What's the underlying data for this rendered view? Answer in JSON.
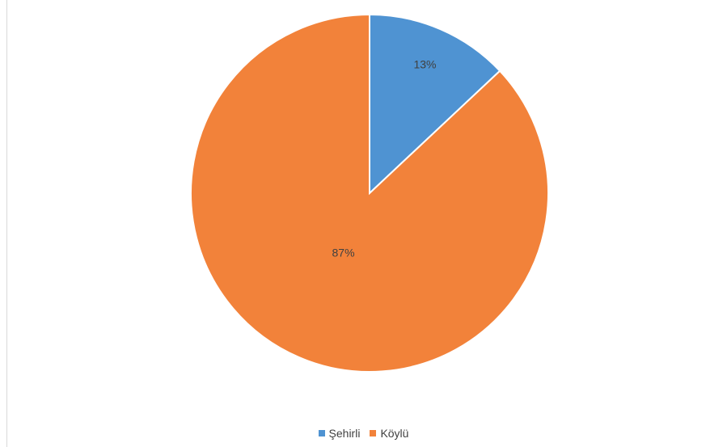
{
  "chart_data": {
    "type": "pie",
    "title": "",
    "categories": [
      "Şehirli",
      "Köylü"
    ],
    "values": [
      13,
      87
    ],
    "data_labels": [
      "13%",
      "87%"
    ],
    "colors": [
      "#4f93d2",
      "#f2823a"
    ],
    "start_angle_deg": 0,
    "direction": "clockwise",
    "legend_position": "bottom"
  }
}
